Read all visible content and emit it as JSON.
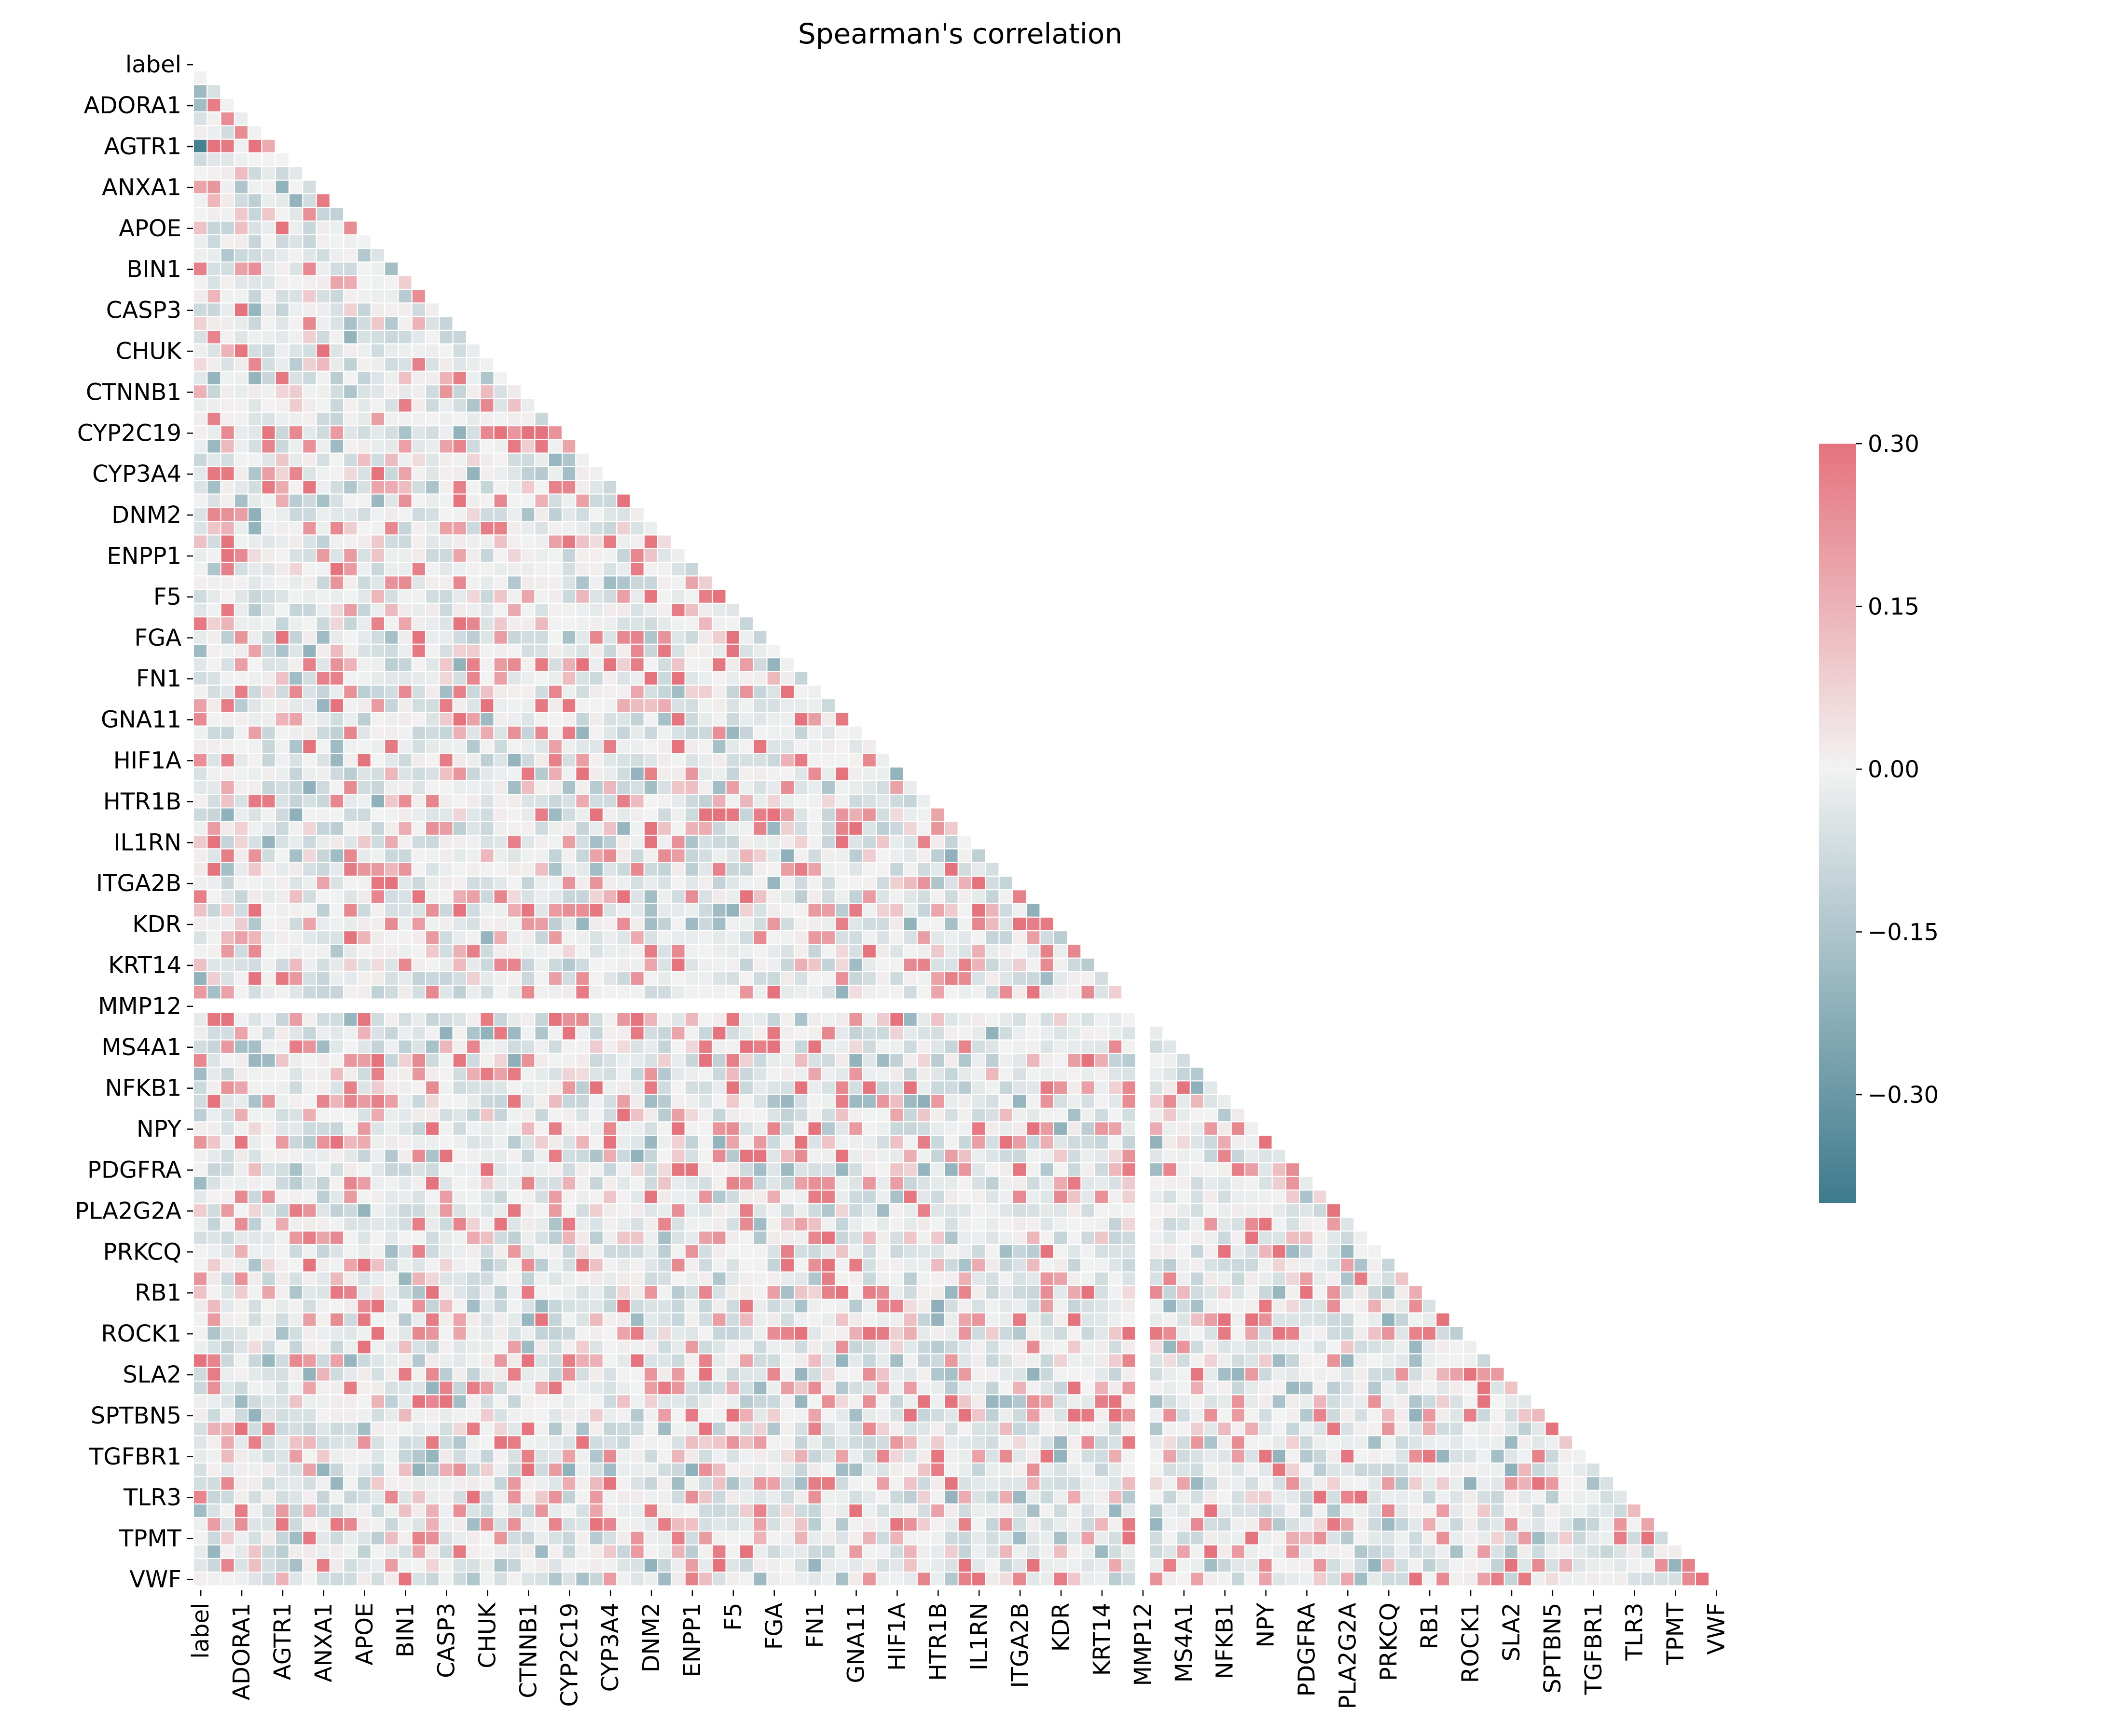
{
  "chart_data": {
    "type": "heatmap",
    "title": "Spearman's correlation",
    "mask": "upper-triangle",
    "n_variables": 112,
    "tick_every": 3,
    "tick_labels": [
      "label",
      "ADORA1",
      "AGTR1",
      "ANXA1",
      "APOE",
      "BIN1",
      "CASP3",
      "CHUK",
      "CTNNB1",
      "CYP2C19",
      "CYP3A4",
      "DNM2",
      "ENPP1",
      "F5",
      "FGA",
      "FN1",
      "GNA11",
      "HIF1A",
      "HTR1B",
      "IL1RN",
      "ITGA2B",
      "KDR",
      "KRT14",
      "MMP12",
      "MS4A1",
      "NFKB1",
      "NPY",
      "PDGFRA",
      "PLA2G2A",
      "PRKCQ",
      "RB1",
      "ROCK1",
      "SLA2",
      "SPTBN5",
      "TGFBR1",
      "TLR3",
      "TPMT",
      "VWF"
    ],
    "colorbar": {
      "vmin": -0.4,
      "vmax": 0.3,
      "center": 0.0,
      "ticks": [
        0.3,
        0.15,
        0.0,
        -0.15,
        -0.3
      ],
      "tick_labels": [
        "0.30",
        "0.15",
        "0.00",
        "−0.15",
        "−0.30"
      ]
    },
    "colors": {
      "negative": "#3d7a8c",
      "center": "#f2f2f2",
      "positive": "#e5737d",
      "masked_row": "#ffffff"
    },
    "blank_row_label": "MMP12",
    "sample_values": [
      {
        "row": "ADORA1",
        "col": "label",
        "value": -0.18
      },
      {
        "row": "AGTR1",
        "col": "label",
        "value": -0.38
      },
      {
        "row": "CASP3",
        "col": "ADORA1",
        "value": 0.3
      },
      {
        "row": "CYP2C19",
        "col": "CTNNB1",
        "value": 0.3
      },
      {
        "row": "FGA",
        "col": "F5",
        "value": 0.3
      },
      {
        "row": "KDR",
        "col": "ITGA2B",
        "value": 0.3
      },
      {
        "row": "NFKB1",
        "col": "MS4A1",
        "value": 0.3
      },
      {
        "row": "VWF",
        "col": "BIN1",
        "value": 0.3
      }
    ]
  }
}
